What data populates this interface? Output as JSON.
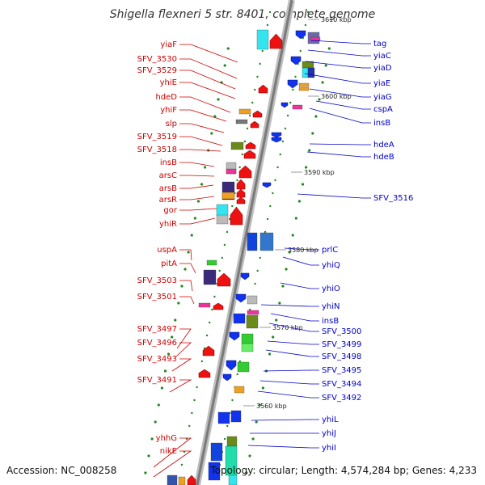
{
  "title": "Shigella flexneri 5 str. 8401, complete genome",
  "accession": "Accession: NC_008258",
  "topology": "Topology: circular; Length: 4,574,284 bp; Genes: 4,233",
  "kbp_labels": [
    "3610 kbp",
    "3600 kbp",
    "3590 kbp",
    "3580 kbp",
    "3570 kbp",
    "3560 kbp"
  ],
  "genes_left": [
    "yiaF",
    "SFV_3530",
    "SFV_3529",
    "yhiE",
    "hdeD",
    "yhiF",
    "slp",
    "SFV_3519",
    "SFV_3518",
    "insB",
    "arsC",
    "arsB",
    "arsR",
    "gor",
    "yhiR",
    "uspA",
    "pitA",
    "SFV_3503",
    "SFV_3501",
    "SFV_3497",
    "SFV_3496",
    "SFV_3493",
    "SFV_3491",
    "yhhG",
    "nikE"
  ],
  "genes_right": [
    "tag",
    "yiaC",
    "yiaD",
    "yiaE",
    "yiaG",
    "cspA",
    "insB",
    "hdeA",
    "hdeB",
    "SFV_3516",
    "prlC",
    "yhiQ",
    "yhiO",
    "yhiN",
    "insB",
    "SFV_3500",
    "SFV_3499",
    "SFV_3498",
    "SFV_3495",
    "SFV_3494",
    "SFV_3492",
    "yhiL",
    "yhiJ",
    "yhiI"
  ],
  "colors": {
    "left_strand": "#cc0000",
    "right_strand": "#0000cc",
    "forward_feature": "#ee1111",
    "reverse_feature": "#1133ee",
    "backbone": "#999999",
    "dots": "#228822"
  }
}
